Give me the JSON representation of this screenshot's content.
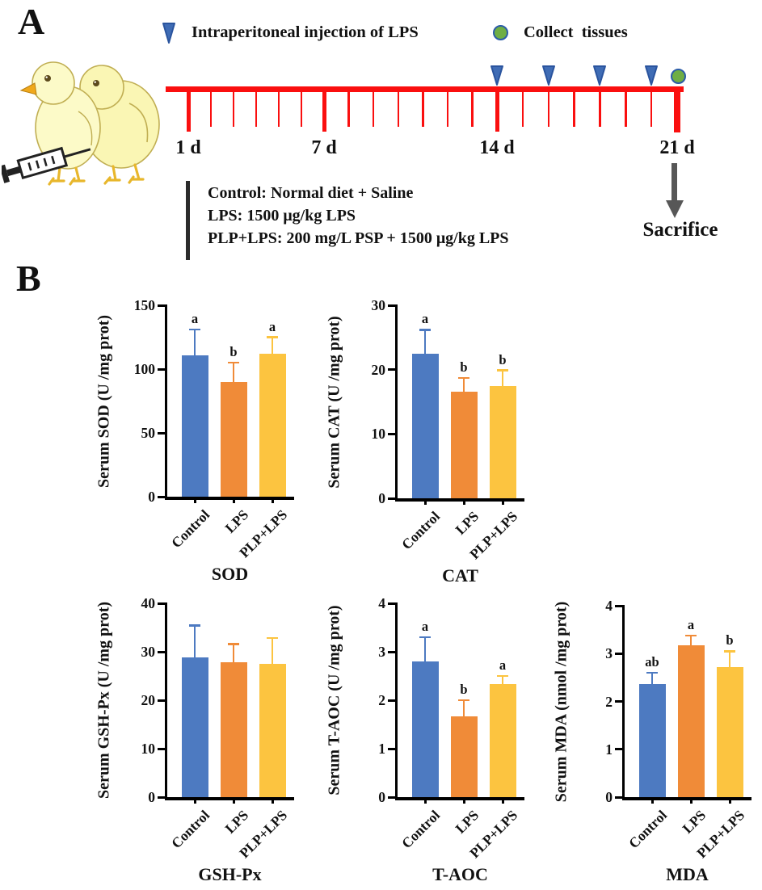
{
  "panel_a": {
    "label": "A",
    "legend_injection": "Intraperitoneal injection of LPS",
    "legend_collect": "Collect  tissues",
    "timeline": {
      "day_labels": [
        "1 d",
        "7 d",
        "14 d",
        "21 d"
      ],
      "major_days": [
        1,
        7,
        14,
        21
      ],
      "total_days": 21,
      "injection_days": [
        14,
        16,
        18,
        20
      ],
      "collect_day": 21
    },
    "groups": [
      "Control: Normal diet + Saline",
      "LPS: 1500 μg/kg LPS",
      "PLP+LPS: 200 mg/L PSP + 1500 μg/kg LPS"
    ],
    "sacrifice_label": "Sacrifice"
  },
  "panel_b": {
    "label": "B"
  },
  "colors": {
    "bar_blue": "#4D7AC1",
    "bar_orange": "#F08B38",
    "bar_yellow": "#FCC440",
    "timeline_red": "#FA0F0F",
    "triangle_blue": "#3F6CB5",
    "triangle_edge": "#2A549E",
    "circle_green": "#6FAE44",
    "circle_edge": "#2B5CA8",
    "arrow_gray": "#575757"
  },
  "chart_data": [
    {
      "type": "bar",
      "title": "SOD",
      "ylabel": "Serum SOD (U /mg prot)",
      "categories": [
        "Control",
        "LPS",
        "PLP+LPS"
      ],
      "values": [
        111,
        90,
        112
      ],
      "errors_up": [
        20,
        15,
        13
      ],
      "sig_letters": [
        "a",
        "b",
        "a"
      ],
      "ylim": [
        0,
        150
      ],
      "yticks": [
        0,
        50,
        100,
        150
      ],
      "bar_colors": [
        "#4D7AC1",
        "#F08B38",
        "#FCC440"
      ],
      "grid": false,
      "legend": "none"
    },
    {
      "type": "bar",
      "title": "CAT",
      "ylabel": "Serum CAT (U /mg prot)",
      "categories": [
        "Control",
        "LPS",
        "PLP+LPS"
      ],
      "values": [
        22.5,
        16.6,
        17.4
      ],
      "errors_up": [
        3.7,
        2.1,
        2.5
      ],
      "sig_letters": [
        "a",
        "b",
        "b"
      ],
      "ylim": [
        0,
        30
      ],
      "yticks": [
        0,
        10,
        20,
        30
      ],
      "bar_colors": [
        "#4D7AC1",
        "#F08B38",
        "#FCC440"
      ],
      "grid": false,
      "legend": "none"
    },
    {
      "type": "bar",
      "title": "GSH-Px",
      "ylabel": "Serum GSH-Px (U /mg prot)",
      "categories": [
        "Control",
        "LPS",
        "PLP+LPS"
      ],
      "values": [
        28.8,
        27.8,
        27.5
      ],
      "errors_up": [
        6.6,
        3.8,
        5.3
      ],
      "sig_letters": [
        "",
        "",
        ""
      ],
      "ylim": [
        0,
        40
      ],
      "yticks": [
        0,
        10,
        20,
        30,
        40
      ],
      "bar_colors": [
        "#4D7AC1",
        "#F08B38",
        "#FCC440"
      ],
      "grid": false,
      "legend": "none"
    },
    {
      "type": "bar",
      "title": "T-AOC",
      "ylabel": "Serum T-AOC (U /mg prot)",
      "categories": [
        "Control",
        "LPS",
        "PLP+LPS"
      ],
      "values": [
        2.8,
        1.67,
        2.34
      ],
      "errors_up": [
        0.5,
        0.33,
        0.16
      ],
      "sig_letters": [
        "a",
        "b",
        "a"
      ],
      "ylim": [
        0,
        4
      ],
      "yticks": [
        0,
        1,
        2,
        3,
        4
      ],
      "bar_colors": [
        "#4D7AC1",
        "#F08B38",
        "#FCC440"
      ],
      "grid": false,
      "legend": "none"
    },
    {
      "type": "bar",
      "title": "MDA",
      "ylabel": "Serum MDA (nmol /mg prot)",
      "categories": [
        "Control",
        "LPS",
        "PLP+LPS"
      ],
      "values": [
        2.37,
        3.18,
        2.71
      ],
      "errors_up": [
        0.23,
        0.2,
        0.34
      ],
      "sig_letters": [
        "ab",
        "a",
        "b"
      ],
      "ylim": [
        0,
        4
      ],
      "yticks": [
        0,
        1,
        2,
        3,
        4
      ],
      "bar_colors": [
        "#4D7AC1",
        "#F08B38",
        "#FCC440"
      ],
      "grid": false,
      "legend": "none"
    }
  ]
}
